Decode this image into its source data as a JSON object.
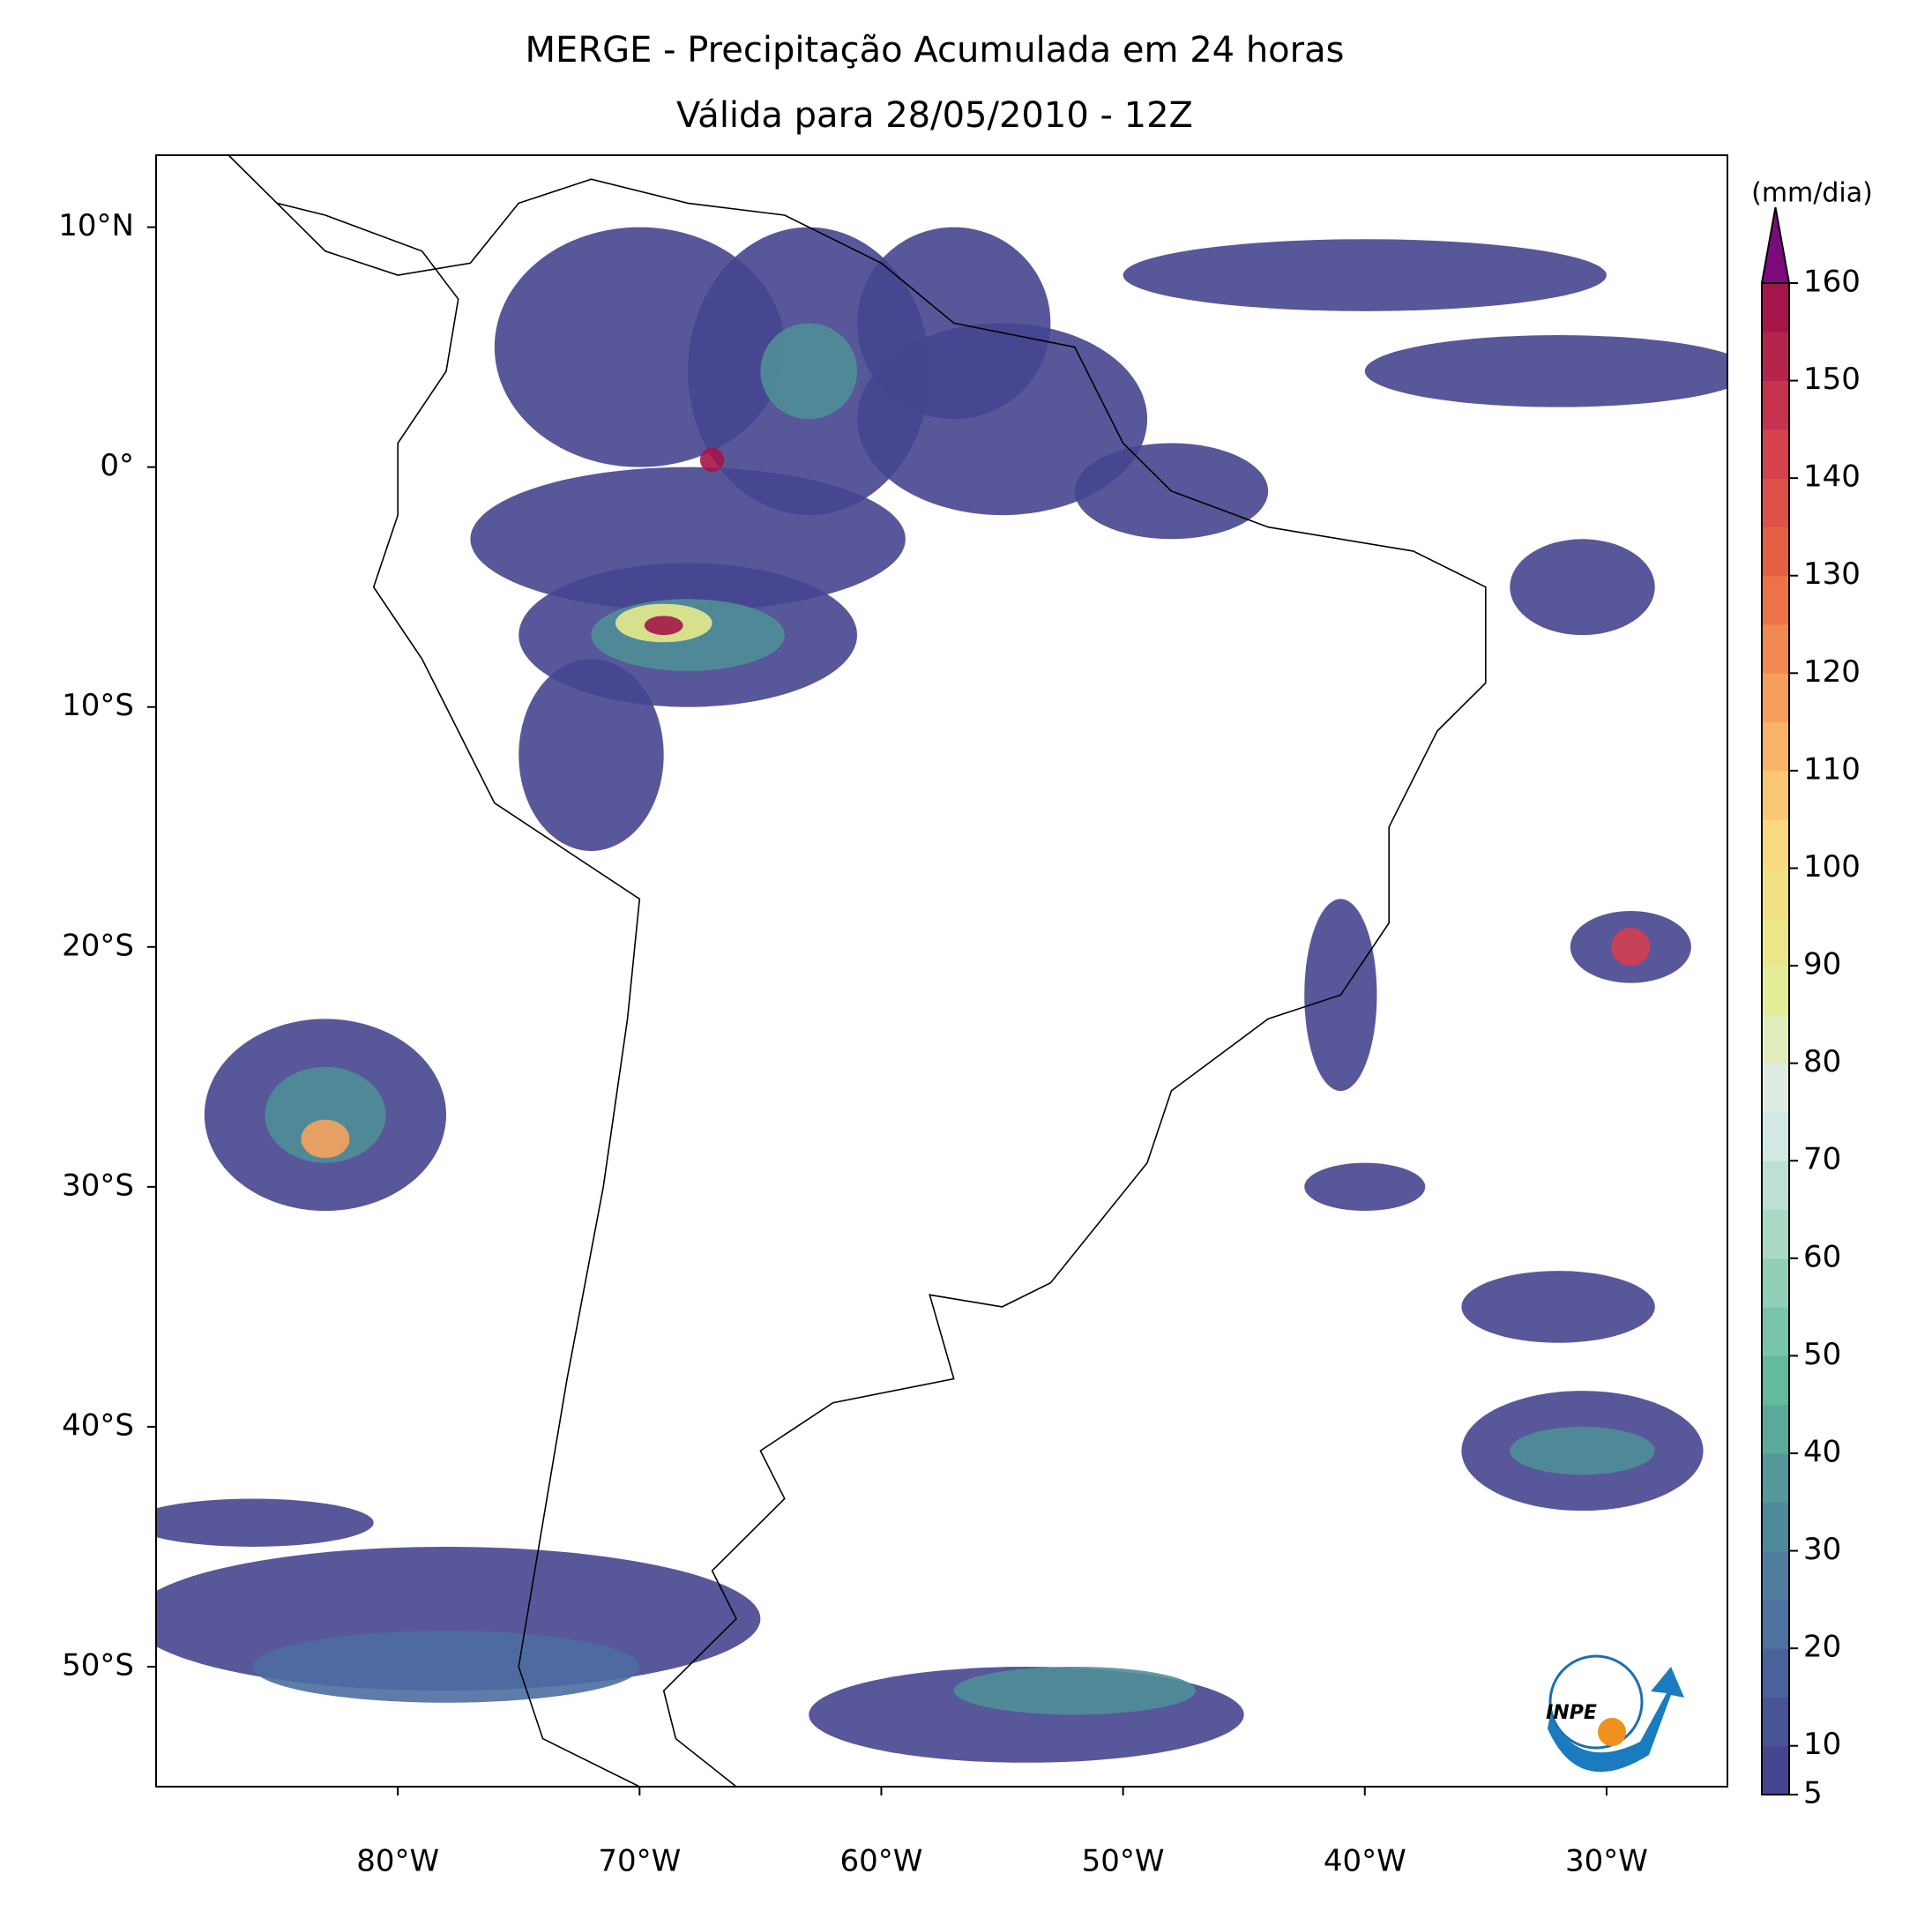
{
  "chart_data": {
    "type": "map",
    "title": "MERGE - Precipitação Acumulada em 24 horas",
    "subtitle": "Válida para 28/05/2010 - 12Z",
    "xlim": [
      -90,
      -25
    ],
    "ylim": [
      -55,
      13
    ],
    "xticks": [
      {
        "value": -80,
        "label": "80°W"
      },
      {
        "value": -70,
        "label": "70°W"
      },
      {
        "value": -60,
        "label": "60°W"
      },
      {
        "value": -50,
        "label": "50°W"
      },
      {
        "value": -40,
        "label": "40°W"
      },
      {
        "value": -30,
        "label": "30°W"
      }
    ],
    "yticks": [
      {
        "value": 10,
        "label": "10°N"
      },
      {
        "value": 0,
        "label": "0°"
      },
      {
        "value": -10,
        "label": "10°S"
      },
      {
        "value": -20,
        "label": "20°S"
      },
      {
        "value": -30,
        "label": "30°S"
      },
      {
        "value": -40,
        "label": "40°S"
      },
      {
        "value": -50,
        "label": "50°S"
      }
    ],
    "colorbar": {
      "label": "(mm/dia)",
      "lim": [
        5,
        160
      ],
      "step": 5,
      "extend": "max",
      "ticks": [
        5,
        10,
        20,
        30,
        40,
        50,
        60,
        70,
        80,
        90,
        100,
        110,
        120,
        130,
        140,
        150,
        160
      ],
      "colors": [
        "#46458f",
        "#4d6ea1",
        "#4f8f98",
        "#66bd9f",
        "#a7d9c1",
        "#dceeee",
        "#e5ea8c",
        "#fbd981",
        "#f7a35e",
        "#ea6744",
        "#d43e4f",
        "#a5154a"
      ],
      "extend_color": "#7d0a7d"
    },
    "logo": "INPE"
  }
}
